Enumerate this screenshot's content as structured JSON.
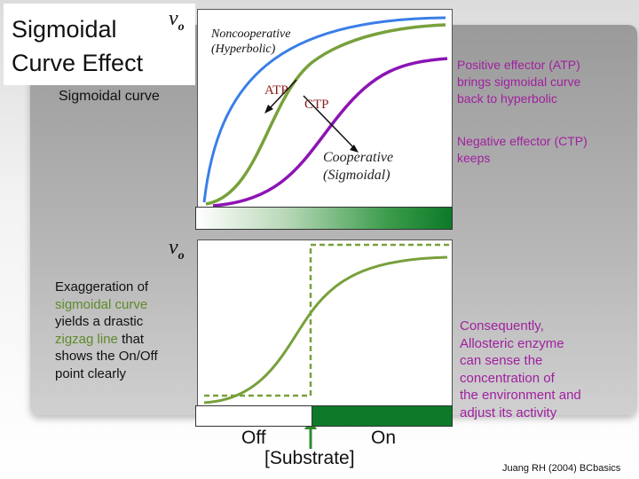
{
  "title": {
    "line1": "Sigmoidal",
    "line2": "Curve Effect"
  },
  "axis": {
    "vo_symbol": "v",
    "vo_sub": "o"
  },
  "top_chart": {
    "sigmoidal_label": "Sigmoidal curve",
    "noncoop_line1": "Noncooperative",
    "noncoop_line2": "(Hyperbolic)",
    "atp": "ATP",
    "ctp": "CTP",
    "coop_line1": "Cooperative",
    "coop_line2": "(Sigmoidal)",
    "colors": {
      "hyperbolic": "#3a7ee8",
      "sigmoidal": "#78a03c",
      "ctp": "#8c14b4"
    }
  },
  "right_notes": {
    "positive": [
      "Positive effector (ATP)",
      "brings sigmoidal curve",
      "back to hyperbolic"
    ],
    "negative": [
      "Negative effector (CTP)",
      "keeps"
    ]
  },
  "bottom_chart": {
    "exaggeration": [
      "Exaggeration of",
      "sigmoidal curve",
      "yields a drastic",
      "zigzag line",
      "that",
      "shows the On/Off",
      "point clearly"
    ],
    "off": "Off",
    "on": "On",
    "substrate": "[Substrate]",
    "consequence": [
      "Consequently,",
      "Allosteric enzyme",
      "can sense the",
      "concentration of",
      "the environment and",
      "adjust its activity"
    ]
  },
  "footer": "Juang RH (2004) BCbasics"
}
